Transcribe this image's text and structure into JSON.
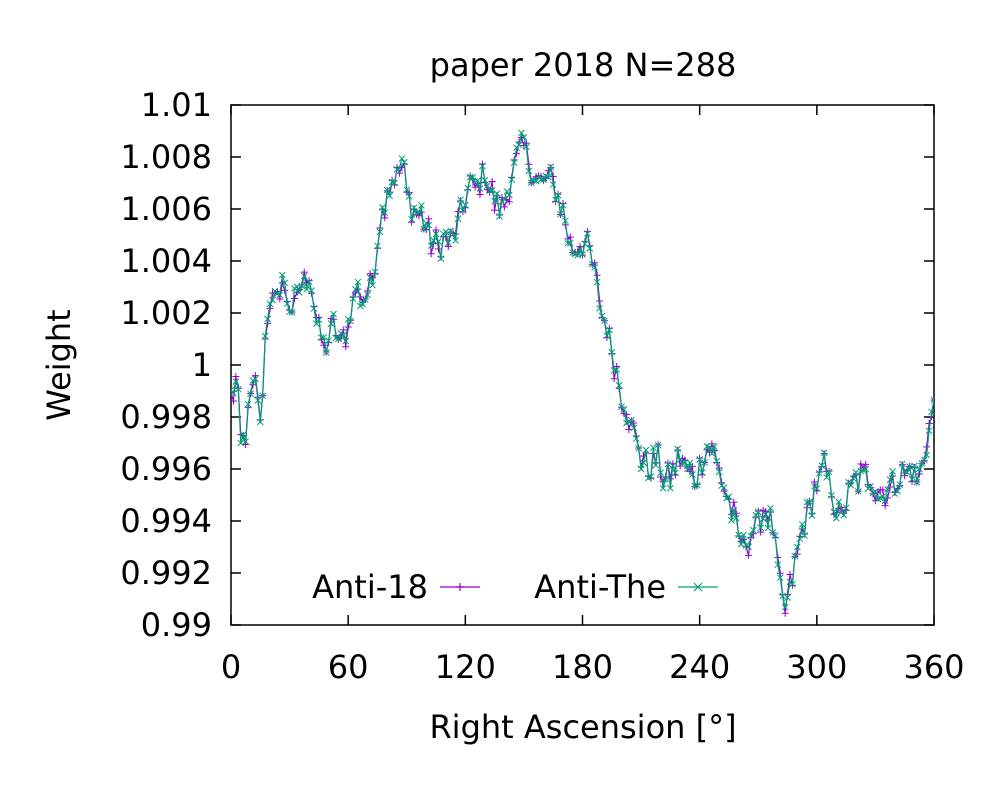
{
  "chart_data": {
    "type": "line",
    "title": "paper 2018 N=288",
    "xlabel": "Right Ascension [°]",
    "ylabel": "Weight",
    "xlim": [
      0,
      360
    ],
    "ylim": [
      0.99,
      1.01
    ],
    "x_ticks": [
      0,
      60,
      120,
      180,
      240,
      300,
      360
    ],
    "x_tick_labels": [
      "0",
      "60",
      "120",
      "180",
      "240",
      "300",
      "360"
    ],
    "y_ticks": [
      0.99,
      0.992,
      0.994,
      0.996,
      0.998,
      1.0,
      1.002,
      1.004,
      1.006,
      1.008,
      1.01
    ],
    "y_tick_labels": [
      "0.99",
      "0.992",
      "0.994",
      "0.996",
      "0.998",
      "1",
      "1.002",
      "1.004",
      "1.006",
      "1.008",
      "1.01"
    ],
    "grid": false,
    "legend": "bottom-left, horizontal",
    "x_step": 1.25,
    "series": [
      {
        "name": "Anti-18",
        "color": "#9400d3",
        "marker": "plus"
      },
      {
        "name": "Anti-The",
        "color": "#009e73",
        "marker": "cross"
      }
    ],
    "anchors": [
      [
        0,
        0.9988
      ],
      [
        3,
        0.9993
      ],
      [
        5,
        0.997
      ],
      [
        8,
        0.9975
      ],
      [
        10,
        0.9985
      ],
      [
        13,
        0.9995
      ],
      [
        15,
        0.9975
      ],
      [
        18,
        1.0015
      ],
      [
        20,
        1.0025
      ],
      [
        23,
        1.0022
      ],
      [
        26,
        1.0035
      ],
      [
        28,
        1.0025
      ],
      [
        32,
        1.0022
      ],
      [
        36,
        1.003
      ],
      [
        40,
        1.0035
      ],
      [
        44,
        1.0015
      ],
      [
        48,
        1.0005
      ],
      [
        52,
        1.0015
      ],
      [
        56,
        1.0008
      ],
      [
        60,
        1.0015
      ],
      [
        64,
        1.003
      ],
      [
        68,
        1.0025
      ],
      [
        72,
        1.003
      ],
      [
        76,
        1.0055
      ],
      [
        80,
        1.0068
      ],
      [
        84,
        1.0072
      ],
      [
        88,
        1.0078
      ],
      [
        90,
        1.0065
      ],
      [
        94,
        1.006
      ],
      [
        98,
        1.0058
      ],
      [
        102,
        1.0048
      ],
      [
        106,
        1.0045
      ],
      [
        110,
        1.0048
      ],
      [
        114,
        1.005
      ],
      [
        118,
        1.0058
      ],
      [
        122,
        1.007
      ],
      [
        126,
        1.0068
      ],
      [
        130,
        1.0075
      ],
      [
        134,
        1.0065
      ],
      [
        138,
        1.0058
      ],
      [
        142,
        1.0068
      ],
      [
        146,
        1.0078
      ],
      [
        150,
        1.0085
      ],
      [
        154,
        1.0075
      ],
      [
        158,
        1.007
      ],
      [
        162,
        1.0072
      ],
      [
        166,
        1.0068
      ],
      [
        170,
        1.006
      ],
      [
        174,
        1.0045
      ],
      [
        178,
        1.0045
      ],
      [
        182,
        1.0048
      ],
      [
        186,
        1.0035
      ],
      [
        190,
        1.002
      ],
      [
        194,
        1.001
      ],
      [
        198,
        0.9995
      ],
      [
        202,
        0.9985
      ],
      [
        206,
        0.9975
      ],
      [
        210,
        0.9965
      ],
      [
        214,
        0.996
      ],
      [
        218,
        0.9965
      ],
      [
        222,
        0.9955
      ],
      [
        226,
        0.9958
      ],
      [
        230,
        0.9965
      ],
      [
        234,
        0.996
      ],
      [
        238,
        0.9955
      ],
      [
        242,
        0.9965
      ],
      [
        246,
        0.997
      ],
      [
        250,
        0.996
      ],
      [
        254,
        0.995
      ],
      [
        258,
        0.994
      ],
      [
        262,
        0.993
      ],
      [
        266,
        0.9935
      ],
      [
        270,
        0.994
      ],
      [
        274,
        0.9945
      ],
      [
        278,
        0.9935
      ],
      [
        282,
        0.991
      ],
      [
        284,
        0.9905
      ],
      [
        288,
        0.992
      ],
      [
        292,
        0.9935
      ],
      [
        296,
        0.9945
      ],
      [
        300,
        0.9955
      ],
      [
        304,
        0.996
      ],
      [
        308,
        0.995
      ],
      [
        312,
        0.994
      ],
      [
        316,
        0.995
      ],
      [
        320,
        0.9955
      ],
      [
        324,
        0.9958
      ],
      [
        328,
        0.9955
      ],
      [
        332,
        0.995
      ],
      [
        336,
        0.9952
      ],
      [
        340,
        0.9955
      ],
      [
        344,
        0.9958
      ],
      [
        348,
        0.996
      ],
      [
        352,
        0.9955
      ],
      [
        356,
        0.997
      ],
      [
        360,
        0.9985
      ]
    ]
  }
}
